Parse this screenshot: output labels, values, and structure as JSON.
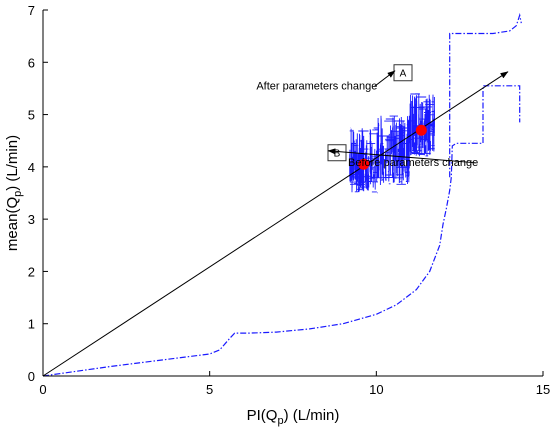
{
  "chart_data": {
    "type": "line",
    "title": "",
    "xlabel": {
      "base": "PI(Q",
      "sub": "p",
      "tail": ") (L/min)"
    },
    "ylabel": {
      "base": "mean(Q",
      "sub": "p",
      "tail": ") (L/min)"
    },
    "xlim": [
      0,
      15
    ],
    "ylim": [
      0,
      7
    ],
    "x_ticks": [
      0,
      5,
      10,
      15
    ],
    "y_ticks": [
      0,
      1,
      2,
      3,
      4,
      5,
      6,
      7
    ],
    "grid": false,
    "colors": {
      "boundary": "#1a1aff",
      "scatter": "#1a1aff",
      "points": "#ff0000",
      "line": "#000000"
    },
    "boundary_lower": [
      [
        0,
        0
      ],
      [
        1,
        0.09
      ],
      [
        2,
        0.18
      ],
      [
        3,
        0.26
      ],
      [
        4,
        0.34
      ],
      [
        5,
        0.42
      ],
      [
        5.3,
        0.5
      ],
      [
        5.6,
        0.72
      ],
      [
        5.75,
        0.82
      ],
      [
        6.2,
        0.82
      ],
      [
        7,
        0.84
      ],
      [
        8,
        0.9
      ],
      [
        9,
        1.0
      ],
      [
        10,
        1.18
      ],
      [
        10.6,
        1.36
      ],
      [
        11.2,
        1.65
      ],
      [
        11.6,
        2.0
      ],
      [
        11.9,
        2.5
      ],
      [
        12.0,
        2.9
      ],
      [
        12.1,
        3.2
      ],
      [
        12.2,
        3.55
      ],
      [
        12.25,
        3.8
      ],
      [
        12.28,
        4.4
      ],
      [
        12.4,
        4.45
      ],
      [
        13.2,
        4.45
      ],
      [
        13.2,
        5.55
      ],
      [
        14.3,
        5.55
      ],
      [
        14.3,
        4.85
      ]
    ],
    "boundary_upper": [
      [
        12.2,
        3.8
      ],
      [
        12.2,
        6.55
      ],
      [
        13.5,
        6.55
      ],
      [
        14.0,
        6.6
      ],
      [
        14.2,
        6.7
      ],
      [
        14.3,
        6.9
      ],
      [
        14.35,
        6.75
      ]
    ],
    "scatter_bands": [
      {
        "x_range": [
          9.2,
          10.05
        ],
        "y_range": [
          3.5,
          4.75
        ]
      },
      {
        "x_range": [
          10.05,
          11.0
        ],
        "y_range": [
          3.65,
          5.0
        ]
      },
      {
        "x_range": [
          11.0,
          11.75
        ],
        "y_range": [
          4.2,
          5.4
        ]
      }
    ],
    "regression_line": [
      [
        0,
        0
      ],
      [
        13.95,
        5.82
      ]
    ],
    "points": [
      {
        "label": "B",
        "x": 9.62,
        "y": 4.05
      },
      {
        "label": "A",
        "x": 11.35,
        "y": 4.7
      }
    ],
    "annotations": [
      {
        "text": "Before parameters change",
        "text_at": [
          9.15,
          4.02
        ]
      },
      {
        "text": "After parameters change",
        "text_at": [
          6.4,
          5.48
        ]
      }
    ]
  }
}
